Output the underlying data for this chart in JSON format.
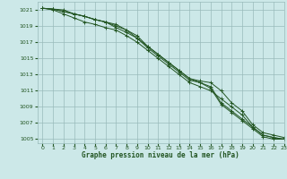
{
  "title": "Graphe pression niveau de la mer (hPa)",
  "bg_color": "#cce8e8",
  "grid_color": "#99bbbb",
  "line_color": "#225522",
  "xlim": [
    -0.5,
    23
  ],
  "ylim": [
    1004.5,
    1022
  ],
  "yticks": [
    1005,
    1007,
    1009,
    1011,
    1013,
    1015,
    1017,
    1019,
    1021
  ],
  "xticks": [
    0,
    1,
    2,
    3,
    4,
    5,
    6,
    7,
    8,
    9,
    10,
    11,
    12,
    13,
    14,
    15,
    16,
    17,
    18,
    19,
    20,
    21,
    22,
    23
  ],
  "series": [
    [
      1021.2,
      1021.1,
      1021.0,
      1020.5,
      1020.2,
      1019.8,
      1019.5,
      1019.2,
      1018.5,
      1017.8,
      1016.5,
      1015.5,
      1014.5,
      1013.5,
      1012.5,
      1012.0,
      1011.5,
      1009.5,
      1008.5,
      1007.5,
      1006.5,
      1005.5,
      1005.2,
      1005.0
    ],
    [
      1021.2,
      1021.0,
      1020.5,
      1020.0,
      1019.5,
      1019.2,
      1018.8,
      1018.5,
      1017.8,
      1017.0,
      1016.0,
      1015.0,
      1014.0,
      1013.0,
      1012.0,
      1011.5,
      1011.0,
      1010.0,
      1009.0,
      1008.0,
      1006.5,
      1005.5,
      1005.2,
      1005.0
    ],
    [
      1021.2,
      1021.1,
      1020.8,
      1020.5,
      1020.2,
      1019.8,
      1019.5,
      1019.0,
      1018.5,
      1017.5,
      1016.5,
      1015.5,
      1014.5,
      1013.5,
      1012.5,
      1012.2,
      1012.0,
      1011.0,
      1009.5,
      1008.5,
      1006.8,
      1005.8,
      1005.5,
      1005.2
    ],
    [
      1021.2,
      1021.1,
      1020.8,
      1020.5,
      1020.2,
      1019.8,
      1019.5,
      1018.8,
      1018.2,
      1017.5,
      1016.3,
      1015.3,
      1014.3,
      1013.3,
      1012.3,
      1012.0,
      1011.3,
      1009.3,
      1008.3,
      1007.3,
      1006.3,
      1005.3,
      1005.0,
      1005.0
    ]
  ]
}
